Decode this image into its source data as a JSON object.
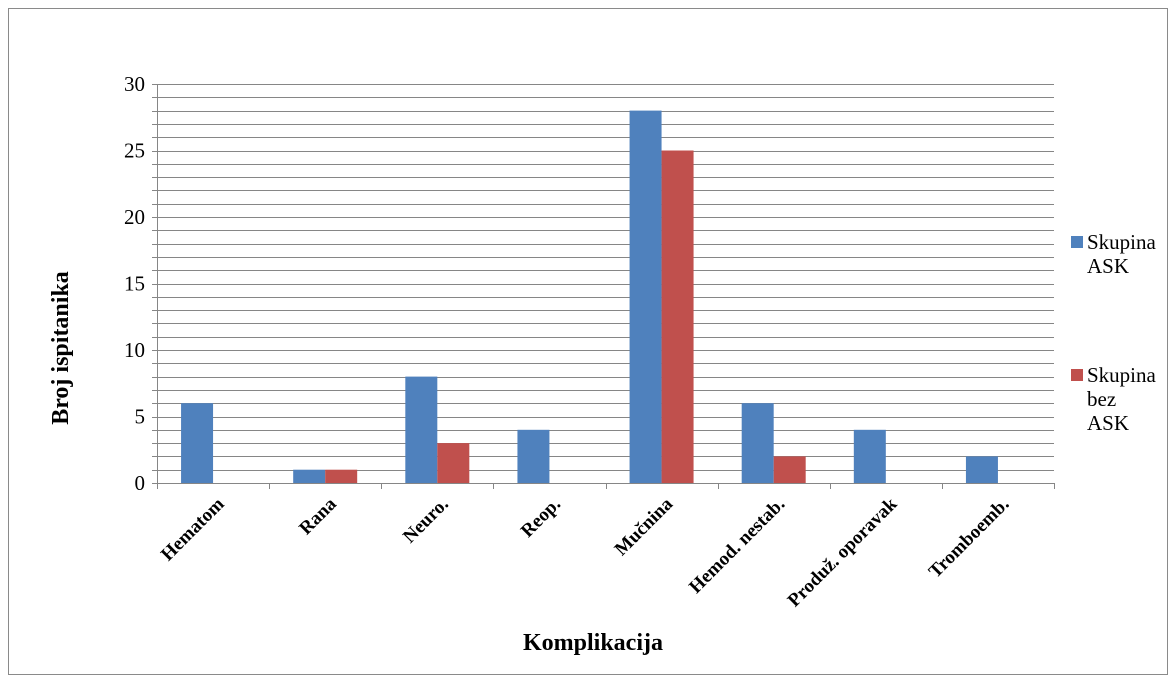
{
  "chart_data": {
    "type": "bar",
    "title": "",
    "xlabel": "Komplikacija",
    "ylabel": "Broj ispitanika",
    "categories": [
      "Hematom",
      "Rana",
      "Neuro.",
      "Reop.",
      "Mučnina",
      "Hemod. nestab.",
      "Produž. oporavak",
      "Tromboemb."
    ],
    "series": [
      {
        "name": "Skupina ASK",
        "legend_lines": [
          "Skupina",
          "ASK"
        ],
        "color": "#4f81bd",
        "values": [
          6,
          1,
          8,
          4,
          28,
          6,
          4,
          2
        ]
      },
      {
        "name": "Skupina bez ASK",
        "legend_lines": [
          "Skupina",
          "bez",
          "ASK"
        ],
        "color": "#c0504d",
        "values": [
          0,
          1,
          3,
          0,
          25,
          2,
          0,
          0
        ]
      }
    ],
    "ylim": [
      0,
      30
    ],
    "yticks": [
      0,
      5,
      10,
      15,
      20,
      25,
      30
    ],
    "minor_gridline_step": 1,
    "grid": true,
    "legend_position": "right"
  }
}
